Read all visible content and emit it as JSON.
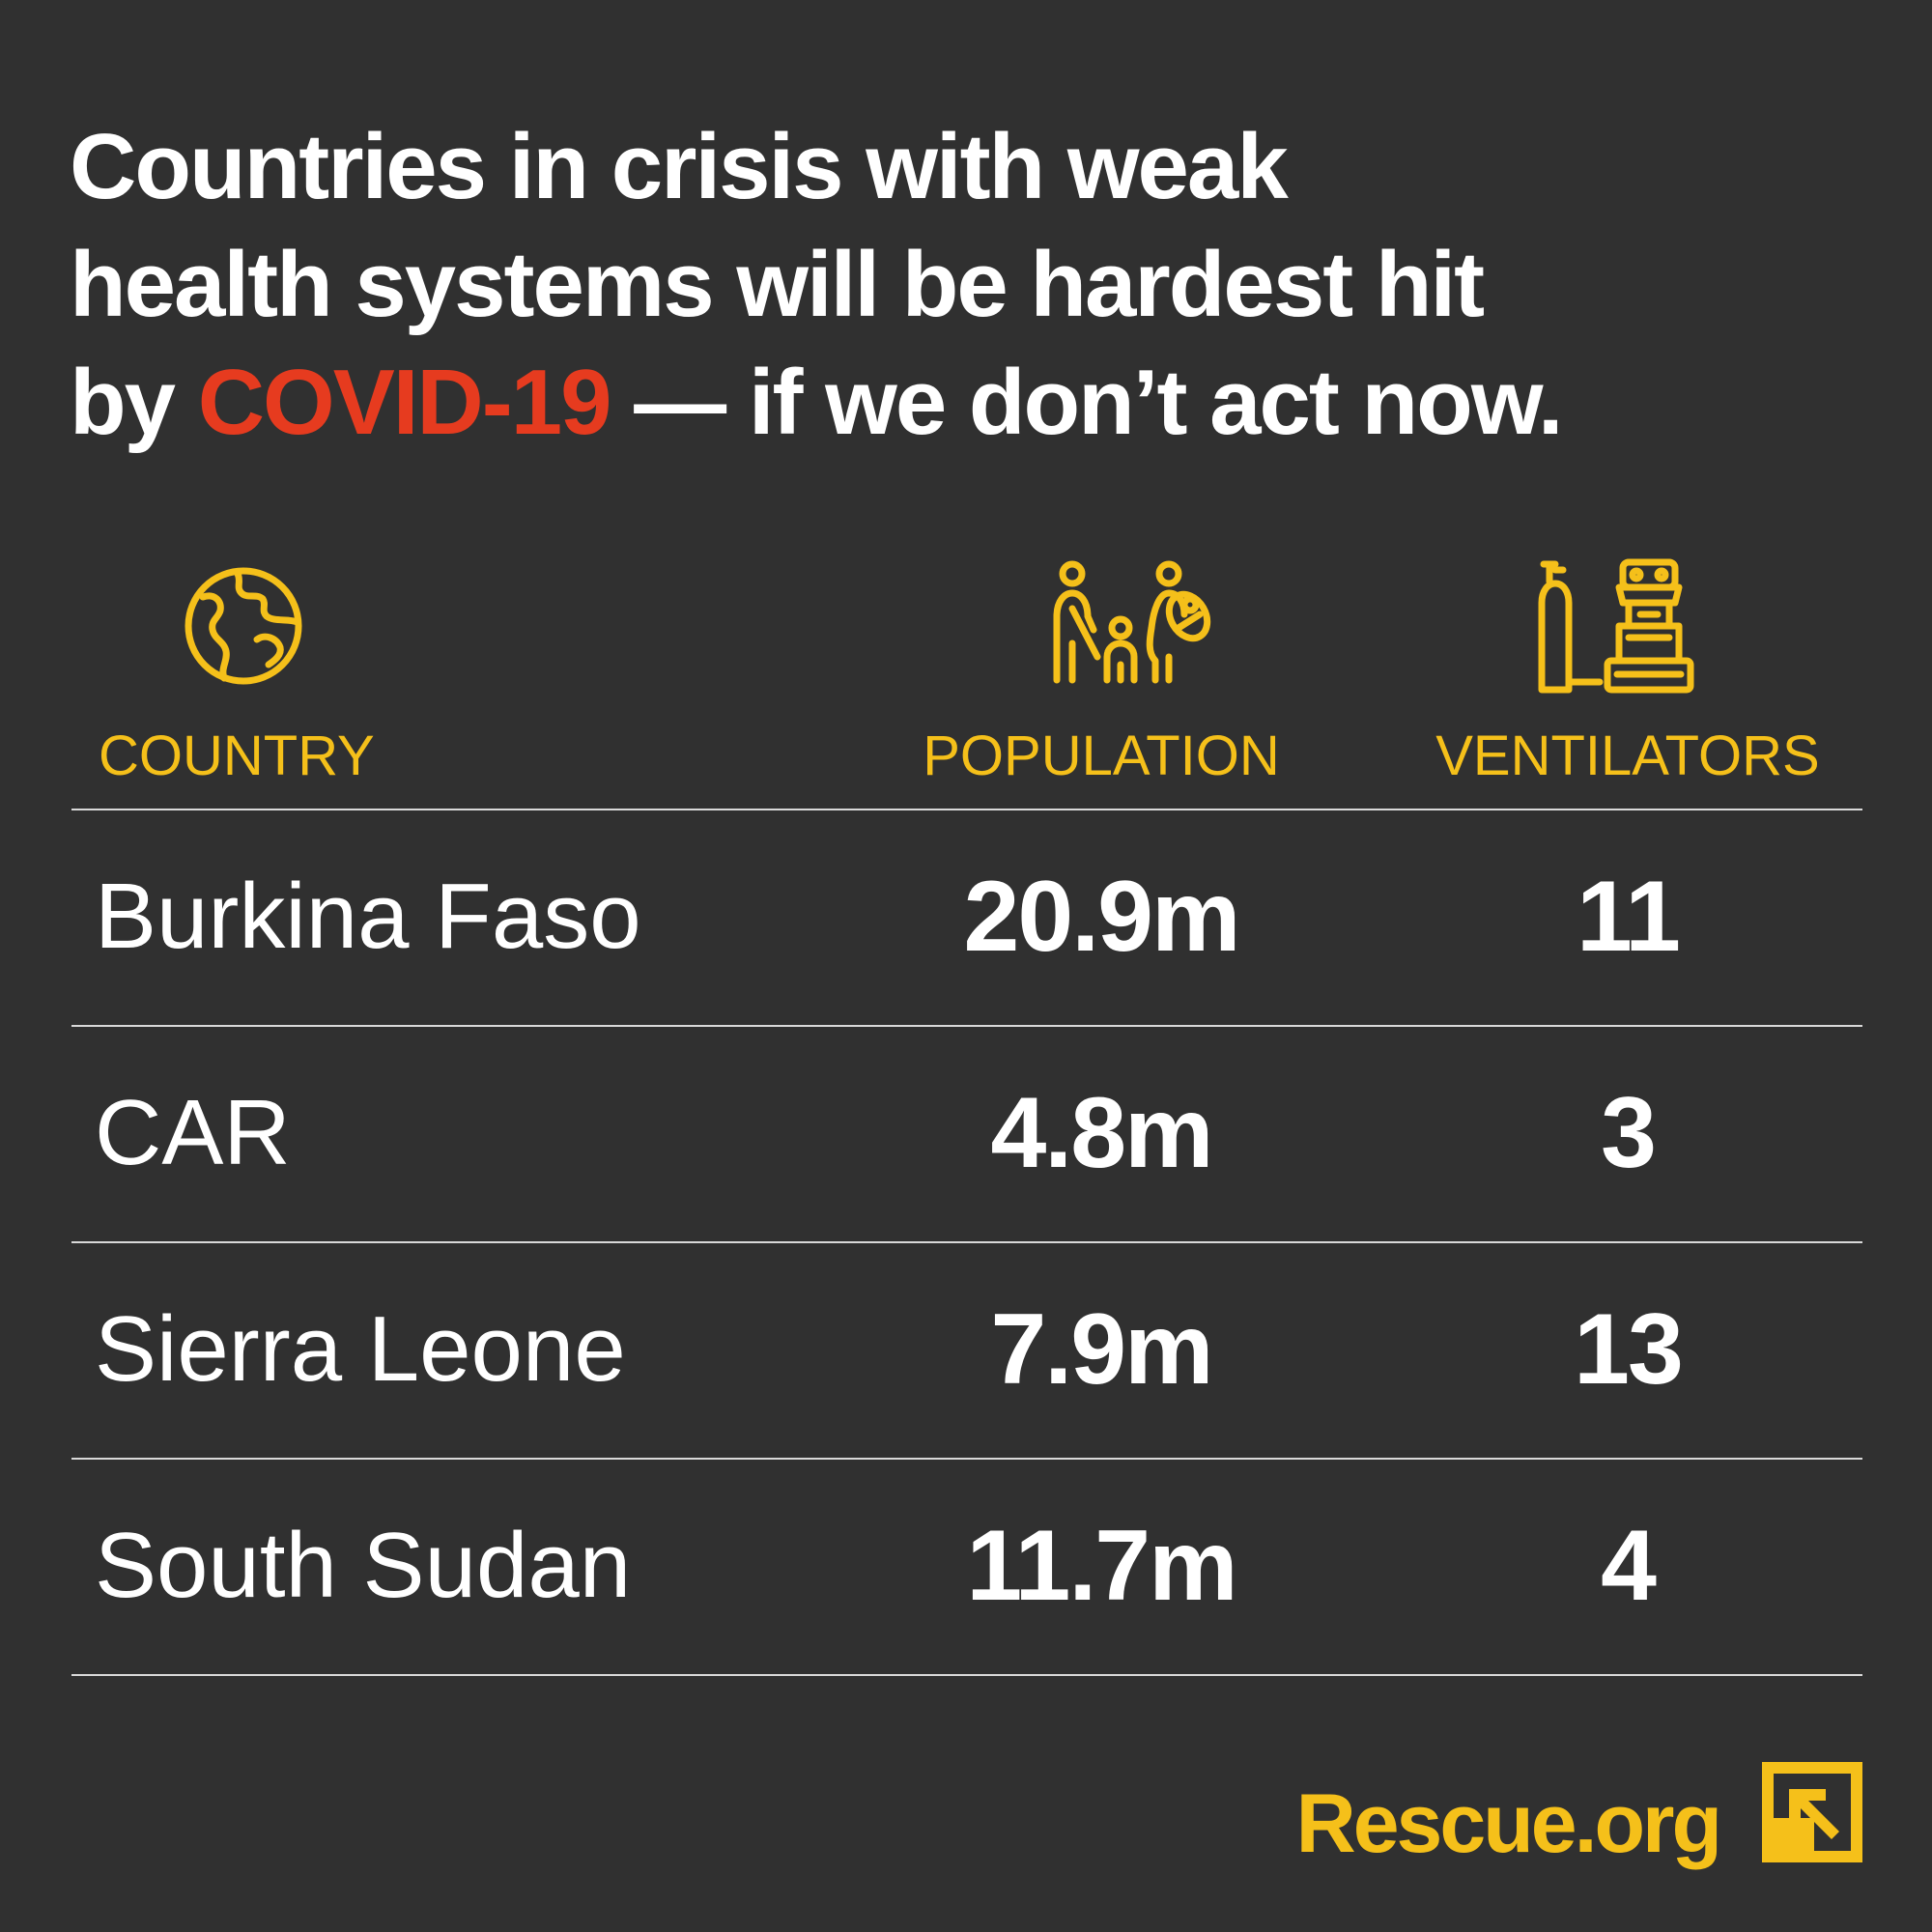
{
  "headline": {
    "line1": "Countries in crisis with weak",
    "line2": "health systems will be hardest hit",
    "line3_prefix": "by ",
    "line3_accent": "COVID-19",
    "line3_suffix": " — if we don’t act now."
  },
  "icons": {
    "country": "globe-icon",
    "population": "people-family-icon",
    "ventilators": "ventilator-oxygen-tank-icon"
  },
  "chart_data": {
    "type": "table",
    "columns": [
      "COUNTRY",
      "POPULATION",
      "VENTILATORS"
    ],
    "rows": [
      {
        "country": "Burkina Faso",
        "population": "20.9m",
        "ventilators": "11"
      },
      {
        "country": "CAR",
        "population": "4.8m",
        "ventilators": "3"
      },
      {
        "country": "Sierra Leone",
        "population": "7.9m",
        "ventilators": "13"
      },
      {
        "country": "South Sudan",
        "population": "11.7m",
        "ventilators": "4"
      }
    ]
  },
  "footer": {
    "brand": "Rescue.org",
    "logo": "irc-arrow-logo-icon"
  },
  "colors": {
    "background": "#303030",
    "text": "#ffffff",
    "accent_yellow": "#f5c01a",
    "accent_red": "#e63b1f",
    "rule": "#d9d9d9"
  }
}
